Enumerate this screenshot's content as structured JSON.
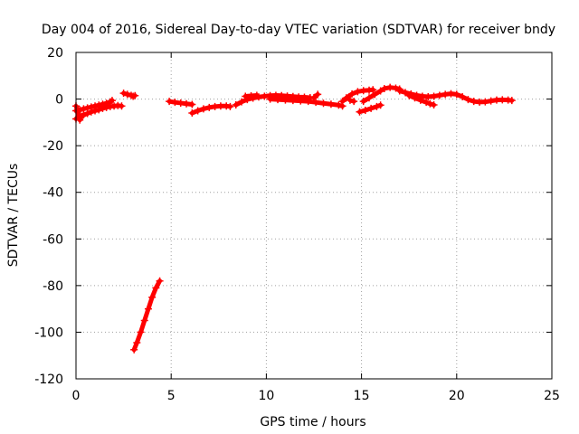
{
  "chart_data": {
    "type": "scatter",
    "title": "Day 004 of 2016, Sidereal Day-to-day VTEC variation (SDTVAR) for receiver bndy",
    "xlabel": "GPS time / hours",
    "ylabel": "SDTVAR / TECUs",
    "xlim": [
      0,
      25
    ],
    "ylim": [
      -120,
      20
    ],
    "xticks": [
      0,
      5,
      10,
      15,
      20,
      25
    ],
    "yticks": [
      -120,
      -100,
      -80,
      -60,
      -40,
      -20,
      0,
      20
    ],
    "grid": true,
    "marker": "plus",
    "color": "#ff0000",
    "series": [
      {
        "name": "SDTVAR",
        "segments": [
          [
            [
              0.0,
              -8.5
            ],
            [
              0.2,
              -7.2
            ],
            [
              0.4,
              -6.8
            ],
            [
              0.6,
              -6.2
            ],
            [
              0.8,
              -5.5
            ],
            [
              1.0,
              -5.0
            ],
            [
              1.2,
              -4.6
            ],
            [
              1.4,
              -4.0
            ],
            [
              1.6,
              -3.6
            ],
            [
              1.8,
              -3.2
            ],
            [
              2.0,
              -3.0
            ],
            [
              2.2,
              -2.8
            ],
            [
              2.4,
              -3.0
            ]
          ],
          [
            [
              0.0,
              -5.0
            ],
            [
              0.2,
              -4.6
            ],
            [
              0.4,
              -4.2
            ],
            [
              0.6,
              -3.8
            ],
            [
              0.8,
              -3.4
            ],
            [
              1.0,
              -3.0
            ],
            [
              1.2,
              -2.6
            ],
            [
              1.4,
              -2.2
            ],
            [
              1.6,
              -1.8
            ],
            [
              1.8,
              -1.2
            ],
            [
              1.9,
              -0.6
            ]
          ],
          [
            [
              0.0,
              -3.0
            ],
            [
              0.1,
              -5.5
            ],
            [
              0.2,
              -9.0
            ],
            [
              0.3,
              -7.5
            ]
          ],
          [
            [
              2.5,
              2.5
            ],
            [
              2.7,
              2.0
            ],
            [
              2.9,
              1.6
            ],
            [
              3.0,
              1.2
            ],
            [
              3.1,
              1.5
            ]
          ],
          [
            [
              3.05,
              -107.5
            ],
            [
              3.2,
              -104.5
            ],
            [
              3.4,
              -100.0
            ],
            [
              3.6,
              -95.0
            ],
            [
              3.8,
              -90.0
            ],
            [
              4.0,
              -85.0
            ],
            [
              4.2,
              -81.0
            ],
            [
              4.4,
              -78.0
            ]
          ],
          [
            [
              4.9,
              -1.0
            ],
            [
              5.2,
              -1.4
            ],
            [
              5.5,
              -1.7
            ],
            [
              5.8,
              -2.0
            ],
            [
              6.1,
              -2.3
            ]
          ],
          [
            [
              6.1,
              -6.0
            ],
            [
              6.4,
              -5.0
            ],
            [
              6.7,
              -4.2
            ],
            [
              7.0,
              -3.6
            ],
            [
              7.3,
              -3.2
            ],
            [
              7.6,
              -3.0
            ],
            [
              7.9,
              -3.0
            ],
            [
              8.1,
              -3.2
            ]
          ],
          [
            [
              8.4,
              -2.5
            ],
            [
              8.7,
              -1.2
            ],
            [
              9.0,
              -0.2
            ],
            [
              9.3,
              0.4
            ],
            [
              9.6,
              0.9
            ],
            [
              9.9,
              1.2
            ],
            [
              10.2,
              1.5
            ],
            [
              10.5,
              1.6
            ],
            [
              10.8,
              1.5
            ],
            [
              11.1,
              1.3
            ],
            [
              11.4,
              1.1
            ],
            [
              11.7,
              0.9
            ],
            [
              12.0,
              0.8
            ],
            [
              12.3,
              0.6
            ]
          ],
          [
            [
              8.9,
              1.2
            ],
            [
              9.2,
              1.4
            ],
            [
              9.5,
              1.6
            ]
          ],
          [
            [
              10.2,
              0.0
            ],
            [
              10.6,
              -0.2
            ],
            [
              11.0,
              -0.4
            ],
            [
              11.4,
              -0.6
            ],
            [
              11.8,
              -0.8
            ],
            [
              12.2,
              -1.0
            ],
            [
              12.6,
              -1.4
            ],
            [
              13.0,
              -1.8
            ],
            [
              13.4,
              -2.2
            ],
            [
              13.8,
              -2.6
            ],
            [
              14.0,
              -3.0
            ]
          ],
          [
            [
              12.5,
              0.6
            ],
            [
              12.7,
              2.0
            ]
          ],
          [
            [
              14.0,
              -1.0
            ],
            [
              14.2,
              0.5
            ],
            [
              14.5,
              2.2
            ],
            [
              14.8,
              3.2
            ],
            [
              15.1,
              3.6
            ],
            [
              15.4,
              3.8
            ],
            [
              15.6,
              4.0
            ]
          ],
          [
            [
              14.4,
              -0.5
            ],
            [
              14.6,
              -1.0
            ]
          ],
          [
            [
              14.9,
              -5.5
            ],
            [
              15.2,
              -4.8
            ],
            [
              15.5,
              -4.0
            ],
            [
              15.8,
              -3.2
            ],
            [
              16.0,
              -2.6
            ]
          ],
          [
            [
              15.1,
              -1.0
            ],
            [
              15.4,
              0.5
            ],
            [
              15.7,
              2.0
            ],
            [
              16.0,
              3.5
            ],
            [
              16.2,
              4.5
            ],
            [
              16.5,
              5.0
            ],
            [
              16.8,
              4.7
            ],
            [
              17.0,
              4.3
            ]
          ],
          [
            [
              17.0,
              3.5
            ],
            [
              17.3,
              2.8
            ],
            [
              17.6,
              2.2
            ],
            [
              17.9,
              1.6
            ],
            [
              18.2,
              1.2
            ],
            [
              18.5,
              1.0
            ],
            [
              18.8,
              1.2
            ],
            [
              19.1,
              1.6
            ],
            [
              19.4,
              2.0
            ],
            [
              19.7,
              2.3
            ],
            [
              20.0,
              2.0
            ],
            [
              20.3,
              1.0
            ],
            [
              20.6,
              -0.2
            ],
            [
              20.9,
              -1.0
            ],
            [
              21.2,
              -1.3
            ],
            [
              21.5,
              -1.2
            ],
            [
              21.8,
              -0.8
            ],
            [
              22.1,
              -0.4
            ],
            [
              22.4,
              -0.3
            ],
            [
              22.7,
              -0.4
            ],
            [
              22.9,
              -0.6
            ]
          ],
          [
            [
              17.5,
              1.5
            ],
            [
              17.8,
              0.5
            ],
            [
              18.1,
              -0.5
            ],
            [
              18.4,
              -1.4
            ],
            [
              18.6,
              -2.0
            ],
            [
              18.8,
              -2.5
            ]
          ]
        ]
      }
    ]
  }
}
